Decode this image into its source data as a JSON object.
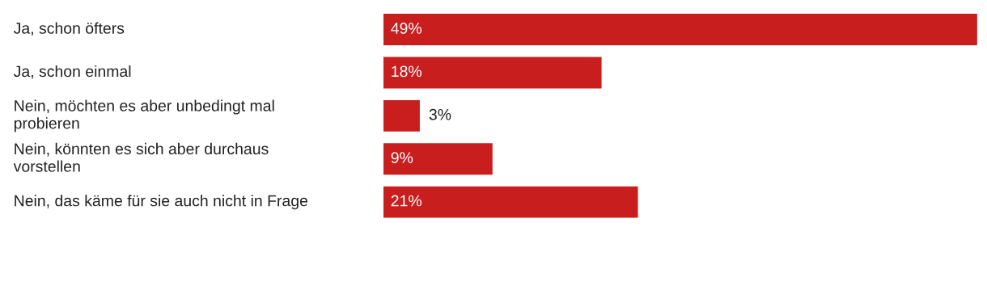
{
  "chart_data": {
    "type": "bar",
    "orientation": "horizontal",
    "categories": [
      "Ja, schon öfters",
      "Ja, schon einmal",
      "Nein, möchten es aber unbedingt mal\nprobieren",
      "Nein, könnten es sich aber durchaus\nvorstellen",
      "Nein, das käme für sie auch nicht in Frage"
    ],
    "values": [
      49,
      18,
      3,
      9,
      21
    ],
    "value_labels": [
      "49%",
      "18%",
      "3%",
      "9%",
      "21%"
    ],
    "color": "#c81e1e"
  }
}
